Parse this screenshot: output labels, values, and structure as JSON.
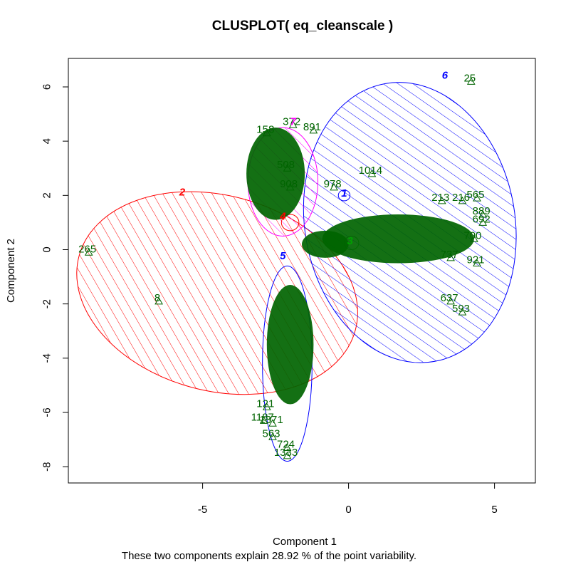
{
  "chart_data": {
    "type": "scatter",
    "title": "CLUSPLOT( eq_cleanscale )",
    "xlabel": "Component 1",
    "ylabel": "Component 2",
    "footnote": "These two components explain 28.92 % of the point variability.",
    "xlim": [
      -9.6,
      6.4
    ],
    "ylim": [
      -8.6,
      7.05
    ],
    "xticks": [
      -5,
      0,
      5
    ],
    "yticks": [
      -8,
      -6,
      -4,
      -2,
      0,
      2,
      4,
      6
    ],
    "xtick_labels": [
      "-5",
      "0",
      "5"
    ],
    "ytick_labels": [
      "-8",
      "-6",
      "-4",
      "-2",
      "0",
      "2",
      "4",
      "6"
    ],
    "grid": false,
    "legend": "none",
    "point_color": "#006400",
    "clusters": [
      {
        "label": "2",
        "color": "#ff0000",
        "hatch": "diag-ne",
        "center": [
          -4.5,
          -1.6
        ],
        "rx": 4.9,
        "ry": 3.6,
        "angle": -15
      },
      {
        "label": "6",
        "color": "#0000ff",
        "hatch": "diag-ne",
        "center": [
          2.1,
          1.0
        ],
        "rx": 3.6,
        "ry": 5.2,
        "angle": 10
      },
      {
        "label": "7",
        "color": "#ff00ff",
        "hatch": "diag-ne",
        "center": [
          -2.25,
          2.5
        ],
        "rx": 1.2,
        "ry": 2.0,
        "angle": 0
      },
      {
        "label": "5",
        "color": "#0000ff",
        "hatch": "none",
        "center": [
          -2.1,
          -4.2
        ],
        "rx": 0.85,
        "ry": 3.6,
        "angle": 0
      },
      {
        "label": "4",
        "color": "#ff0000",
        "hatch": "none",
        "center": [
          -2.0,
          1.0
        ],
        "rx": 0.3,
        "ry": 0.3,
        "angle": 0
      },
      {
        "label": "1",
        "color": "#0000ff",
        "hatch": "none",
        "center": [
          -0.15,
          2.0
        ],
        "rx": 0.2,
        "ry": 0.2,
        "angle": 0
      },
      {
        "label": "3",
        "color": "#00a000",
        "hatch": "none",
        "center": [
          0.1,
          0.25
        ],
        "rx": 0.25,
        "ry": 0.25,
        "angle": 0
      }
    ],
    "label_points": [
      {
        "label": "25",
        "x": 4.2,
        "y": 6.2
      },
      {
        "label": "265",
        "x": -8.9,
        "y": -0.1
      },
      {
        "label": "8",
        "x": -6.5,
        "y": -1.9
      },
      {
        "label": "1014",
        "x": 0.8,
        "y": 2.8
      },
      {
        "label": "978",
        "x": -0.5,
        "y": 2.3
      },
      {
        "label": "565",
        "x": 4.4,
        "y": 1.9
      },
      {
        "label": "216",
        "x": 3.9,
        "y": 1.8
      },
      {
        "label": "213",
        "x": 3.2,
        "y": 1.8
      },
      {
        "label": "889",
        "x": 4.6,
        "y": 1.3
      },
      {
        "label": "692",
        "x": 4.6,
        "y": 1.0
      },
      {
        "label": "700",
        "x": 4.3,
        "y": 0.4
      },
      {
        "label": "737",
        "x": 3.5,
        "y": -0.3
      },
      {
        "label": "921",
        "x": 4.4,
        "y": -0.5
      },
      {
        "label": "637",
        "x": 3.5,
        "y": -1.9
      },
      {
        "label": "593",
        "x": 3.9,
        "y": -2.3
      },
      {
        "label": "372",
        "x": -1.9,
        "y": 4.6
      },
      {
        "label": "891",
        "x": -1.2,
        "y": 4.4
      },
      {
        "label": "158",
        "x": -2.8,
        "y": 4.3
      },
      {
        "label": "508",
        "x": -2.1,
        "y": 3.0
      },
      {
        "label": "908",
        "x": -2.0,
        "y": 2.3
      },
      {
        "label": "563",
        "x": -2.6,
        "y": -6.9
      },
      {
        "label": "724",
        "x": -2.1,
        "y": -7.3
      },
      {
        "label": "1333",
        "x": -2.1,
        "y": -7.6
      },
      {
        "label": "121",
        "x": -2.8,
        "y": -5.8
      },
      {
        "label": "1371",
        "x": -2.6,
        "y": -6.4
      },
      {
        "label": "1187",
        "x": -2.9,
        "y": -6.3
      }
    ]
  }
}
